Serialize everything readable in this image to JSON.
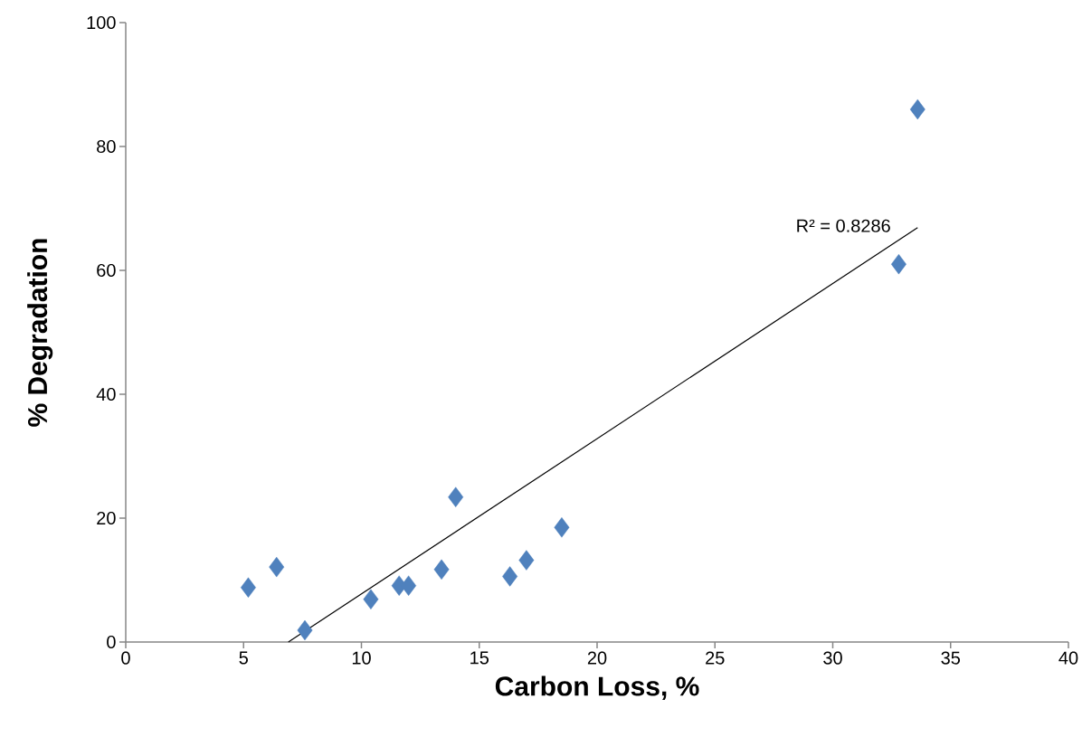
{
  "chart_data": {
    "type": "scatter",
    "xlabel": "Carbon Loss, %",
    "ylabel": "% Degradation",
    "xlim": [
      0,
      40
    ],
    "ylim": [
      0,
      100
    ],
    "xticks": [
      0,
      5,
      10,
      15,
      20,
      25,
      30,
      35,
      40
    ],
    "yticks": [
      0,
      20,
      40,
      60,
      80,
      100
    ],
    "marker": "diamond",
    "series": [
      {
        "color": "#4f81bd",
        "x": [
          5.2,
          6.4,
          7.6,
          10.4,
          11.6,
          12.0,
          13.4,
          14.0,
          16.3,
          17.0,
          18.5,
          32.8,
          33.6
        ],
        "values": [
          8.8,
          12.1,
          1.9,
          6.9,
          9.1,
          9.1,
          11.7,
          23.4,
          10.6,
          13.2,
          18.5,
          61.0,
          86.0
        ]
      },
      {
        "type": "line",
        "color": "#000000",
        "marker": "none",
        "x": [
          6.9,
          33.6
        ],
        "values": [
          0,
          66.9
        ]
      }
    ],
    "annotations": [
      "R² = 0.8286"
    ]
  }
}
